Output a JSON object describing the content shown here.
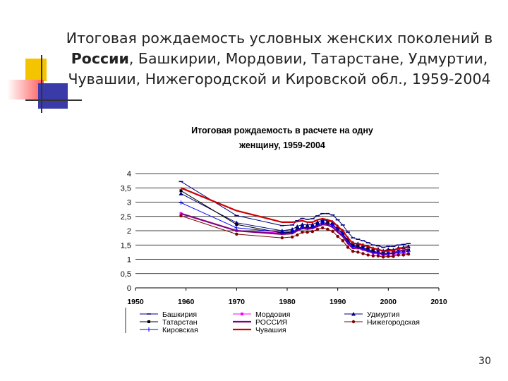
{
  "slide": {
    "title_line1": "Итоговая рождаемость условных женских поколений в",
    "title_bold": "России",
    "title_line2_rest": ", Башкирии, Мордовии, Татарстане, Удмуртии,",
    "title_line3": "Чувашии, Нижегородской и Кировской обл., 1959-2004",
    "page_number": "30",
    "accent_colors": {
      "yellow": "#f5c400",
      "red": "#ff6a6a",
      "blue": "#3a3aa8",
      "line": "#333333"
    }
  },
  "chart_data": {
    "type": "line",
    "title_line1": "Итоговая рождаемость в расчете на одну",
    "title_line2": "женщину, 1959-2004",
    "xlim": [
      1950,
      2010
    ],
    "ylim": [
      0,
      4
    ],
    "x_ticks": [
      "1950",
      "1960",
      "1970",
      "1980",
      "1990",
      "2000",
      "2010"
    ],
    "y_ticks": [
      "0",
      "0,5",
      "1",
      "1,5",
      "2",
      "2,5",
      "3",
      "3,5",
      "4"
    ],
    "grid": "horizontal",
    "legend_position": "bottom",
    "x": [
      1959,
      1970,
      1979,
      1981,
      1982,
      1983,
      1984,
      1985,
      1986,
      1987,
      1988,
      1989,
      1990,
      1991,
      1992,
      1993,
      1994,
      1995,
      1996,
      1997,
      1998,
      1999,
      2000,
      2001,
      2002,
      2003,
      2004
    ],
    "series": [
      {
        "name": "Башкирия",
        "color": "#000080",
        "marker": "dash",
        "values": [
          3.72,
          2.53,
          2.18,
          2.2,
          2.35,
          2.43,
          2.4,
          2.42,
          2.52,
          2.6,
          2.6,
          2.55,
          2.38,
          2.2,
          1.95,
          1.75,
          1.7,
          1.65,
          1.58,
          1.5,
          1.47,
          1.42,
          1.45,
          1.45,
          1.5,
          1.52,
          1.55
        ]
      },
      {
        "name": "Мордовия",
        "color": "#ff00ff",
        "marker": "square",
        "values": [
          2.6,
          2.0,
          1.92,
          1.93,
          2.05,
          2.12,
          2.1,
          2.12,
          2.2,
          2.28,
          2.25,
          2.18,
          2.0,
          1.85,
          1.6,
          1.42,
          1.4,
          1.35,
          1.3,
          1.22,
          1.18,
          1.12,
          1.15,
          1.15,
          1.2,
          1.2,
          1.2
        ]
      },
      {
        "name": "Удмуртия",
        "color": "#000080",
        "marker": "triangle",
        "values": [
          3.3,
          2.28,
          2.0,
          2.05,
          2.15,
          2.22,
          2.2,
          2.22,
          2.3,
          2.38,
          2.35,
          2.3,
          2.15,
          2.0,
          1.75,
          1.58,
          1.55,
          1.5,
          1.44,
          1.38,
          1.36,
          1.3,
          1.35,
          1.33,
          1.4,
          1.42,
          1.45
        ]
      },
      {
        "name": "Татарстан",
        "color": "#000000",
        "marker": "square",
        "values": [
          3.4,
          2.22,
          1.92,
          1.95,
          2.05,
          2.12,
          2.1,
          2.12,
          2.2,
          2.28,
          2.25,
          2.22,
          2.05,
          1.9,
          1.65,
          1.48,
          1.45,
          1.4,
          1.35,
          1.28,
          1.25,
          1.2,
          1.22,
          1.22,
          1.28,
          1.3,
          1.32
        ]
      },
      {
        "name": "РОССИЯ",
        "color": "#800080",
        "marker": "none",
        "values": [
          2.6,
          2.0,
          1.88,
          1.9,
          2.0,
          2.08,
          2.06,
          2.08,
          2.15,
          2.22,
          2.2,
          2.12,
          1.95,
          1.8,
          1.55,
          1.38,
          1.4,
          1.34,
          1.28,
          1.23,
          1.24,
          1.17,
          1.2,
          1.22,
          1.28,
          1.32,
          1.34
        ]
      },
      {
        "name": "Нижегородская",
        "color": "#800000",
        "marker": "circle",
        "values": [
          2.52,
          1.88,
          1.75,
          1.78,
          1.85,
          1.95,
          1.95,
          1.97,
          2.05,
          2.1,
          2.05,
          1.98,
          1.8,
          1.65,
          1.42,
          1.28,
          1.25,
          1.2,
          1.15,
          1.12,
          1.12,
          1.08,
          1.1,
          1.1,
          1.15,
          1.15,
          1.18
        ]
      },
      {
        "name": "Кировская",
        "color": "#0000ff",
        "marker": "plus",
        "values": [
          2.98,
          2.1,
          1.95,
          1.96,
          2.05,
          2.12,
          2.1,
          2.12,
          2.2,
          2.28,
          2.25,
          2.2,
          2.05,
          1.88,
          1.62,
          1.45,
          1.42,
          1.38,
          1.32,
          1.25,
          1.22,
          1.18,
          1.2,
          1.2,
          1.25,
          1.25,
          1.28
        ]
      },
      {
        "name": "Чувашия",
        "color": "#cc0000",
        "marker": "none",
        "values": [
          3.5,
          2.7,
          2.3,
          2.3,
          2.32,
          2.35,
          2.3,
          2.3,
          2.38,
          2.42,
          2.38,
          2.32,
          2.15,
          2.0,
          1.75,
          1.55,
          1.55,
          1.5,
          1.45,
          1.38,
          1.35,
          1.28,
          1.3,
          1.3,
          1.38,
          1.4,
          1.42
        ]
      }
    ]
  }
}
